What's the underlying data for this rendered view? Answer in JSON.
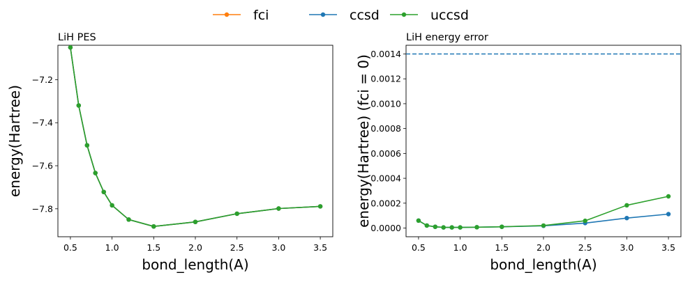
{
  "legend": {
    "entries": [
      {
        "name": "fci",
        "color": "#ff7f0e"
      },
      {
        "name": "ccsd",
        "color": "#1f77b4"
      },
      {
        "name": "uccsd",
        "color": "#2ca02c"
      }
    ],
    "placement": "top-center"
  },
  "chart_data": [
    {
      "type": "line",
      "title": "LiH PES",
      "xlabel": "bond_length(A)",
      "ylabel": "energy(Hartree)",
      "x": [
        0.5,
        0.6,
        0.7,
        0.8,
        0.9,
        1.0,
        1.2,
        1.5,
        2.0,
        2.5,
        3.0,
        3.5
      ],
      "xlim": [
        0.35,
        3.65
      ],
      "ylim": [
        -7.93,
        -7.04
      ],
      "xticks": [
        "0.5",
        "1.0",
        "1.5",
        "2.0",
        "2.5",
        "3.0",
        "3.5"
      ],
      "yticks": [
        "−7.2",
        "−7.4",
        "−7.6",
        "−7.8"
      ],
      "grid": false,
      "series": [
        {
          "name": "fci",
          "color": "#ff7f0e",
          "values": [
            -7.05,
            -7.32,
            -7.505,
            -7.634,
            -7.722,
            -7.784,
            -7.85,
            -7.882,
            -7.861,
            -7.823,
            -7.799,
            -7.789
          ]
        },
        {
          "name": "ccsd",
          "color": "#1f77b4",
          "values": [
            -7.05,
            -7.32,
            -7.505,
            -7.634,
            -7.722,
            -7.784,
            -7.85,
            -7.882,
            -7.861,
            -7.823,
            -7.799,
            -7.789
          ]
        },
        {
          "name": "uccsd",
          "color": "#2ca02c",
          "values": [
            -7.05,
            -7.32,
            -7.505,
            -7.634,
            -7.722,
            -7.784,
            -7.85,
            -7.882,
            -7.861,
            -7.823,
            -7.799,
            -7.789
          ]
        }
      ]
    },
    {
      "type": "line",
      "title": "LiH energy error",
      "xlabel": "bond_length(A)",
      "ylabel": "energy(Hartree) (fci = 0)",
      "x": [
        0.5,
        0.6,
        0.7,
        0.8,
        0.9,
        1.0,
        1.2,
        1.5,
        2.0,
        2.5,
        3.0,
        3.5
      ],
      "xlim": [
        0.35,
        3.65
      ],
      "ylim": [
        -7e-05,
        0.00147
      ],
      "xticks": [
        "0.5",
        "1.0",
        "1.5",
        "2.0",
        "2.5",
        "3.0",
        "3.5"
      ],
      "yticks": [
        "0.0000",
        "0.0002",
        "0.0004",
        "0.0006",
        "0.0008",
        "0.0010",
        "0.0012",
        "0.0014"
      ],
      "grid": false,
      "hline": {
        "value": 0.0014,
        "color": "#1f77b4",
        "style": "dashed"
      },
      "series": [
        {
          "name": "ccsd",
          "color": "#1f77b4",
          "values": [
            6e-05,
            2e-05,
            1e-05,
            5e-06,
            5e-06,
            5e-06,
            7e-06,
            1e-05,
            1.8e-05,
            4e-05,
            8e-05,
            0.000112
          ]
        },
        {
          "name": "uccsd",
          "color": "#2ca02c",
          "values": [
            6e-05,
            2e-05,
            1e-05,
            5e-06,
            5e-06,
            5e-06,
            7e-06,
            1e-05,
            2e-05,
            5.8e-05,
            0.000183,
            0.000255
          ]
        }
      ]
    }
  ]
}
